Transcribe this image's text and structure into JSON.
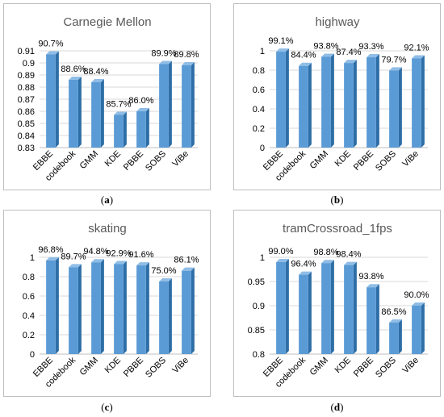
{
  "colors": {
    "bar_front": "#5b9bd5",
    "bar_side": "#2e6ea6",
    "bar_top": "#8fbde6",
    "grid": "#d9d9d9",
    "axis": "#bfbfbf",
    "text": "#000000",
    "title": "#595959"
  },
  "chart_data": [
    {
      "type": "bar",
      "title": "Carnegie Mellon",
      "caption_letter": "a",
      "categories": [
        "EBBE",
        "codebook",
        "GMM",
        "KDE",
        "PBBE",
        "SOBS",
        "ViBe"
      ],
      "values": [
        0.907,
        0.886,
        0.884,
        0.857,
        0.86,
        0.899,
        0.898
      ],
      "data_labels": [
        "90.7%",
        "88.6%",
        "88.4%",
        "85.7%",
        "86.0%",
        "89.9%",
        "89.8%"
      ],
      "ylim": [
        0.83,
        0.91
      ],
      "yticks": [
        "0.83",
        "0.84",
        "0.85",
        "0.86",
        "0.87",
        "0.88",
        "0.89",
        "0.9",
        "0.91"
      ],
      "grid": true
    },
    {
      "type": "bar",
      "title": "highway",
      "caption_letter": "b",
      "categories": [
        "EBBE",
        "codebook",
        "GMM",
        "KDE",
        "PBBE",
        "SOBS",
        "ViBe"
      ],
      "values": [
        0.991,
        0.844,
        0.938,
        0.874,
        0.933,
        0.797,
        0.921
      ],
      "data_labels": [
        "99.1%",
        "84.4%",
        "93.8%",
        "87.4%",
        "93.3%",
        "79.7%",
        "92.1%"
      ],
      "ylim": [
        0,
        1
      ],
      "yticks": [
        "0",
        "0.2",
        "0.4",
        "0.6",
        "0.8",
        "1"
      ],
      "grid": true
    },
    {
      "type": "bar",
      "title": "skating",
      "caption_letter": "c",
      "categories": [
        "EBBE",
        "codebook",
        "GMM",
        "KDE",
        "PBBE",
        "SOBS",
        "ViBe"
      ],
      "values": [
        0.968,
        0.897,
        0.948,
        0.929,
        0.916,
        0.75,
        0.861
      ],
      "data_labels": [
        "96.8%",
        "89.7%",
        "94.8%",
        "92.9%",
        "91.6%",
        "75.0%",
        "86.1%"
      ],
      "ylim": [
        0,
        1
      ],
      "yticks": [
        "0",
        "0.2",
        "0.4",
        "0.6",
        "0.8",
        "1"
      ],
      "grid": true
    },
    {
      "type": "bar",
      "title": "tramCrossroad_1fps",
      "caption_letter": "d",
      "categories": [
        "EBBE",
        "codebook",
        "GMM",
        "KDE",
        "PBBE",
        "SOBS",
        "ViBe"
      ],
      "values": [
        0.99,
        0.964,
        0.988,
        0.984,
        0.938,
        0.865,
        0.9
      ],
      "data_labels": [
        "99.0%",
        "96.4%",
        "98.8%",
        "98.4%",
        "93.8%",
        "86.5%",
        "90.0%"
      ],
      "ylim": [
        0.8,
        1
      ],
      "yticks": [
        "0.8",
        "0.85",
        "0.9",
        "0.95",
        "1"
      ],
      "grid": true
    }
  ]
}
